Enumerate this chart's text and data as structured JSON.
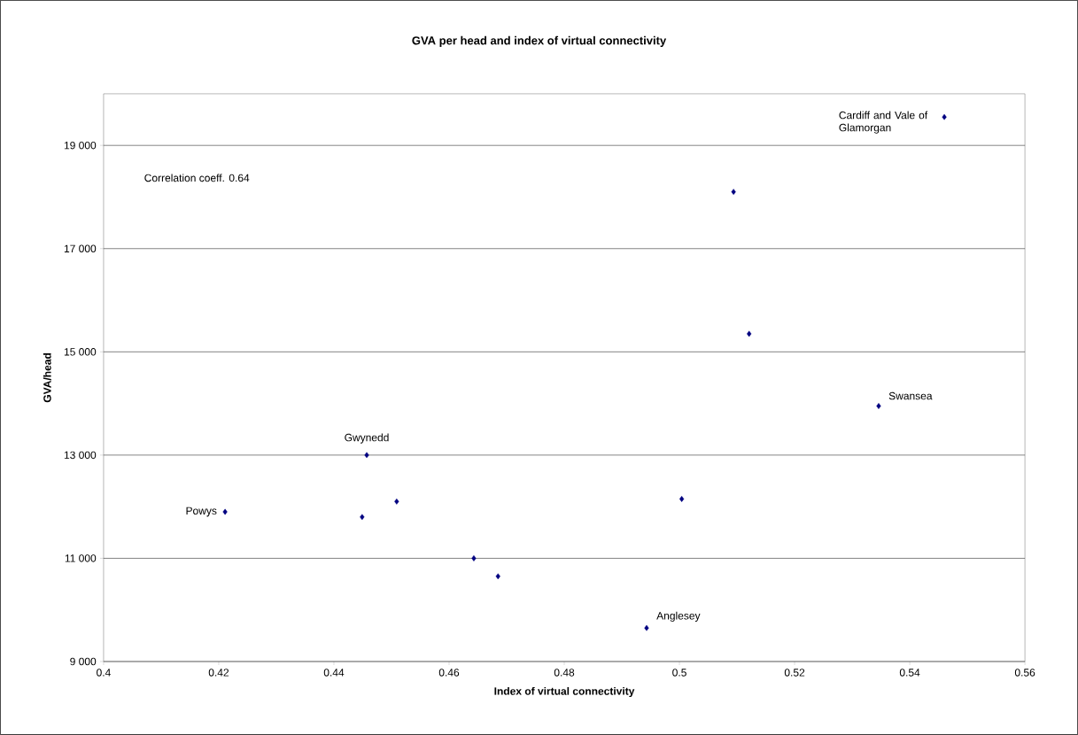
{
  "chart_data": {
    "type": "scatter",
    "title": "GVA per head and index of virtual connectivity",
    "xlabel": "Index of virtual connectivity",
    "ylabel": "GVA/head",
    "x": [
      0.4211,
      0.4449,
      0.4457,
      0.4509,
      0.4643,
      0.4685,
      0.4943,
      0.5004,
      0.5094,
      0.5121,
      0.5346,
      0.546
    ],
    "values": [
      11900,
      11800,
      13000,
      12100,
      11000,
      10650,
      9650,
      12150,
      18100,
      15350,
      13950,
      19550
    ],
    "color": "#000080",
    "marker": "diamond",
    "xlim": [
      0.4,
      0.56
    ],
    "xticks": [
      0.4,
      0.42,
      0.44,
      0.46,
      0.48,
      0.5,
      0.52,
      0.54,
      0.56
    ],
    "ylim": [
      9000,
      20000
    ],
    "yticks": [
      {
        "value": 9000,
        "label": "9 000"
      },
      {
        "value": 11000,
        "label": "11 000"
      },
      {
        "value": 13000,
        "label": "13 000"
      },
      {
        "value": 15000,
        "label": "15 000"
      },
      {
        "value": 17000,
        "label": "17 000"
      },
      {
        "value": 19000,
        "label": "19 000"
      }
    ],
    "grid": "y",
    "annotations": [
      "Correlation coeff. 0.64",
      {
        "text": "Cardiff and Vale of Glamorgan",
        "x": 0.546,
        "y": 19550
      },
      {
        "text": "Swansea",
        "x": 0.5346,
        "y": 13950
      },
      {
        "text": "Gwynedd",
        "x": 0.4457,
        "y": 13000
      },
      {
        "text": "Powys",
        "x": 0.4211,
        "y": 11900
      },
      {
        "text": "Anglesey",
        "x": 0.4943,
        "y": 9650
      }
    ]
  }
}
